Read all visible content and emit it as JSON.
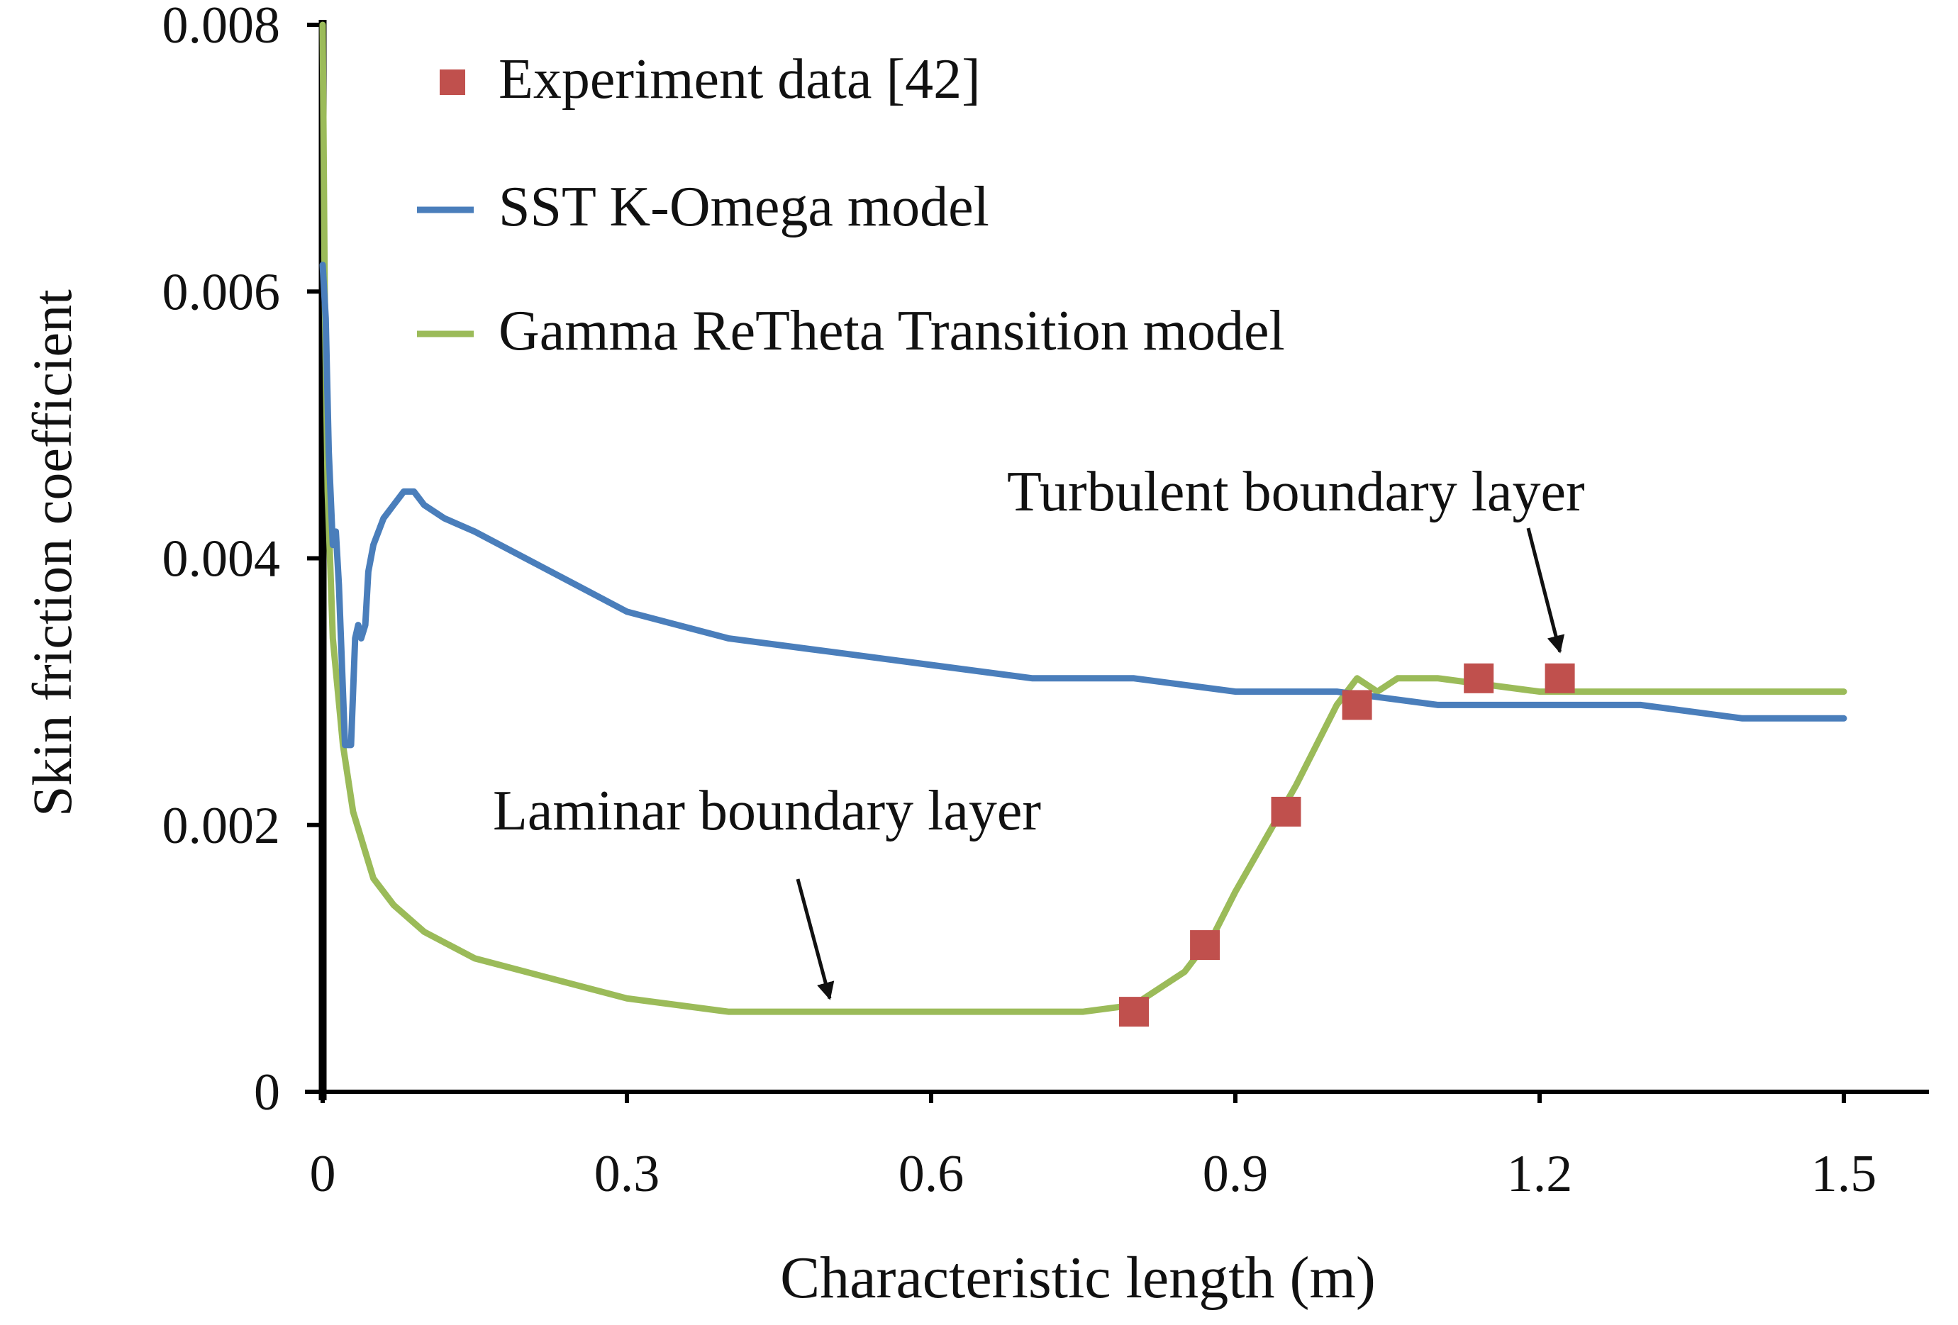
{
  "chart_data": {
    "type": "line",
    "title": "",
    "xlabel": "Characteristic length (m)",
    "ylabel": "Skin friction coefficient",
    "xlim": [
      0,
      1.5
    ],
    "ylim": [
      0,
      0.008
    ],
    "x_ticks": [
      0,
      0.3,
      0.6,
      0.9,
      1.2,
      1.5
    ],
    "x_tick_labels": [
      "0",
      "0.3",
      "0.6",
      "0.9",
      "1.2",
      "1.5"
    ],
    "y_ticks": [
      0,
      0.002,
      0.004,
      0.006,
      0.008
    ],
    "y_tick_labels": [
      "0",
      "0.002",
      "0.004",
      "0.006",
      "0.008"
    ],
    "grid": false,
    "legend_position": "top-left",
    "series": [
      {
        "name": "Experiment data [42]",
        "kind": "scatter",
        "color": "#c0504d",
        "x": [
          0.8,
          0.87,
          0.95,
          1.02,
          1.14,
          1.22
        ],
        "y": [
          0.0006,
          0.0011,
          0.0021,
          0.0029,
          0.0031,
          0.0031
        ]
      },
      {
        "name": "SST K-Omega model",
        "kind": "line",
        "color": "#4a7ebb",
        "x": [
          0.0,
          0.003,
          0.006,
          0.01,
          0.013,
          0.016,
          0.02,
          0.022,
          0.025,
          0.028,
          0.032,
          0.035,
          0.038,
          0.042,
          0.045,
          0.05,
          0.06,
          0.07,
          0.08,
          0.09,
          0.1,
          0.12,
          0.15,
          0.2,
          0.25,
          0.3,
          0.4,
          0.5,
          0.6,
          0.7,
          0.8,
          0.9,
          1.0,
          1.1,
          1.2,
          1.3,
          1.4,
          1.5
        ],
        "y": [
          0.0062,
          0.0058,
          0.0048,
          0.0041,
          0.0042,
          0.0038,
          0.003,
          0.0026,
          0.0026,
          0.0026,
          0.0034,
          0.0035,
          0.0034,
          0.0035,
          0.0039,
          0.0041,
          0.0043,
          0.0044,
          0.0045,
          0.0045,
          0.0044,
          0.0043,
          0.0042,
          0.004,
          0.0038,
          0.0036,
          0.0034,
          0.0033,
          0.0032,
          0.0031,
          0.0031,
          0.003,
          0.003,
          0.0029,
          0.0029,
          0.0029,
          0.0028,
          0.0028
        ]
      },
      {
        "name": "Gamma ReTheta Transition model",
        "kind": "line",
        "color": "#9bbb59",
        "x": [
          0.0,
          0.002,
          0.005,
          0.01,
          0.02,
          0.03,
          0.05,
          0.07,
          0.1,
          0.15,
          0.2,
          0.3,
          0.4,
          0.5,
          0.6,
          0.7,
          0.75,
          0.8,
          0.85,
          0.88,
          0.9,
          0.93,
          0.96,
          0.98,
          1.0,
          1.02,
          1.04,
          1.06,
          1.1,
          1.2,
          1.3,
          1.4,
          1.5
        ],
        "y": [
          0.008,
          0.006,
          0.0045,
          0.0034,
          0.0026,
          0.0021,
          0.0016,
          0.0014,
          0.0012,
          0.001,
          0.0009,
          0.0007,
          0.0006,
          0.0006,
          0.0006,
          0.0006,
          0.0006,
          0.00065,
          0.0009,
          0.0012,
          0.0015,
          0.0019,
          0.0023,
          0.0026,
          0.0029,
          0.0031,
          0.003,
          0.0031,
          0.0031,
          0.003,
          0.003,
          0.003,
          0.003
        ]
      }
    ],
    "annotations": [
      {
        "text": "Turbulent boundary layer",
        "arrow_to": [
          1.22,
          0.0033
        ]
      },
      {
        "text": "Laminar boundary layer",
        "arrow_to": [
          0.5,
          0.0007
        ]
      }
    ]
  }
}
